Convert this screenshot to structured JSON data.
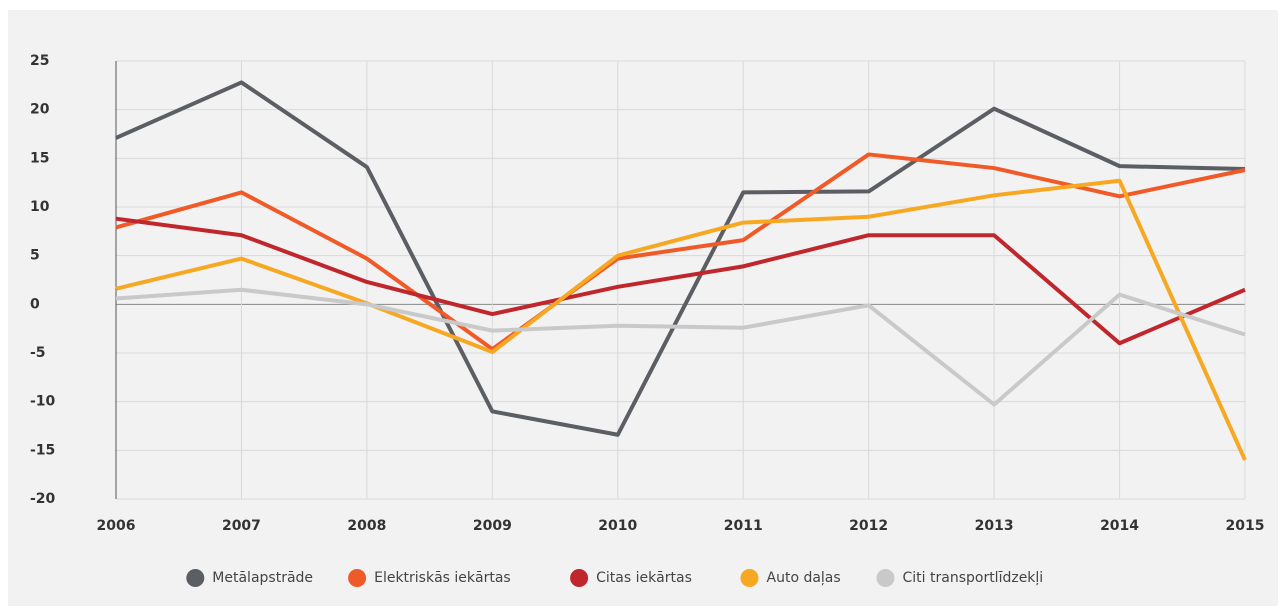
{
  "chart_data": {
    "type": "line",
    "categories": [
      "2006",
      "2007",
      "2008",
      "2009",
      "2010",
      "2011",
      "2012",
      "2013",
      "2014",
      "2015"
    ],
    "series": [
      {
        "name": "Metālapstrāde",
        "color": "#5b5e63",
        "values": [
          17.1,
          22.8,
          14.1,
          -11.0,
          -13.4,
          11.5,
          11.6,
          20.1,
          14.2,
          13.9
        ]
      },
      {
        "name": "Elektriskās iekārtas",
        "color": "#f05a28",
        "values": [
          7.9,
          11.5,
          4.7,
          -4.6,
          4.7,
          6.6,
          15.4,
          14.0,
          11.1,
          13.8
        ]
      },
      {
        "name": "Citas iekārtas",
        "color": "#c0272d",
        "values": [
          8.8,
          7.1,
          2.3,
          -1.0,
          1.8,
          3.9,
          7.1,
          7.1,
          -4.0,
          1.5
        ]
      },
      {
        "name": "Auto daļas",
        "color": "#f7a823",
        "values": [
          1.6,
          4.7,
          0.1,
          -4.9,
          5.0,
          8.4,
          9.0,
          11.2,
          12.7,
          -16.0
        ]
      },
      {
        "name": "Citi transportlīdzekļi",
        "color": "#c9c9c9",
        "values": [
          0.6,
          1.5,
          0.0,
          -2.7,
          -2.2,
          -2.4,
          -0.1,
          -10.3,
          1.0,
          -3.1
        ]
      }
    ],
    "ylim": [
      -20,
      25
    ],
    "yticks": [
      -20,
      -15,
      -10,
      -5,
      0,
      5,
      10,
      15,
      20,
      25
    ],
    "grid": true,
    "legend": "bottom"
  }
}
